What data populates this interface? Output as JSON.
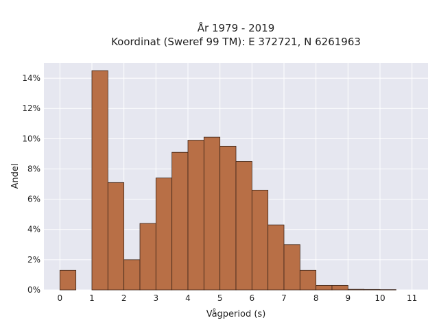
{
  "chart_data": {
    "type": "bar",
    "title": "År 1979 - 2019",
    "subtitle": "Koordinat (Sweref 99 TM): E 372721, N 6261963",
    "xlabel": "Vågperiod (s)",
    "ylabel": "Andel",
    "xlim": [
      -0.5,
      11.5
    ],
    "ylim": [
      0,
      0.15
    ],
    "x_ticks": [
      0,
      1,
      2,
      3,
      4,
      5,
      6,
      7,
      8,
      9,
      10,
      11
    ],
    "y_ticks": [
      0,
      0.02,
      0.04,
      0.06,
      0.08,
      0.1,
      0.12,
      0.14
    ],
    "y_tick_labels": [
      "0%",
      "2%",
      "4%",
      "6%",
      "8%",
      "10%",
      "12%",
      "14%"
    ],
    "bin_width": 0.5,
    "bins": [
      {
        "x": 0.0,
        "value": 0.013
      },
      {
        "x": 0.5,
        "value": 0.0
      },
      {
        "x": 1.0,
        "value": 0.145
      },
      {
        "x": 1.5,
        "value": 0.071
      },
      {
        "x": 2.0,
        "value": 0.02
      },
      {
        "x": 2.5,
        "value": 0.044
      },
      {
        "x": 3.0,
        "value": 0.074
      },
      {
        "x": 3.5,
        "value": 0.091
      },
      {
        "x": 4.0,
        "value": 0.099
      },
      {
        "x": 4.5,
        "value": 0.101
      },
      {
        "x": 5.0,
        "value": 0.095
      },
      {
        "x": 5.5,
        "value": 0.085
      },
      {
        "x": 6.0,
        "value": 0.066
      },
      {
        "x": 6.5,
        "value": 0.043
      },
      {
        "x": 7.0,
        "value": 0.03
      },
      {
        "x": 7.5,
        "value": 0.013
      },
      {
        "x": 8.0,
        "value": 0.003
      },
      {
        "x": 8.5,
        "value": 0.003
      },
      {
        "x": 9.0,
        "value": 0.0004
      },
      {
        "x": 9.5,
        "value": 0.0003
      },
      {
        "x": 10.0,
        "value": 0.0002
      }
    ],
    "grid": true,
    "legend": "none",
    "bar_color": "#b86f46",
    "plot_background": "#e6e7f0"
  }
}
